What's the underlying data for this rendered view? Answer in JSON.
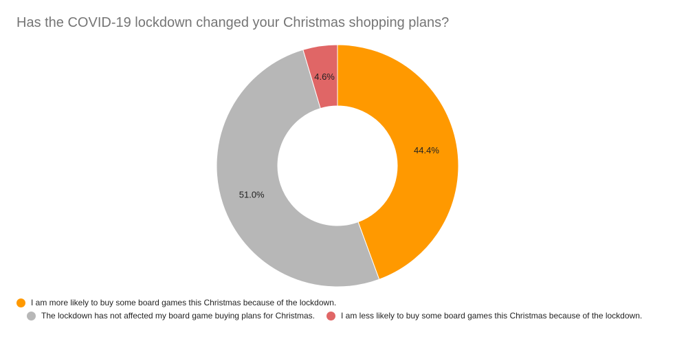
{
  "chart_data": {
    "type": "pie",
    "subtype": "donut",
    "title": "Has the COVID-19 lockdown changed your Christmas shopping plans?",
    "categories": [
      "I am more likely to buy some board games this Christmas because of the lockdown.",
      "The lockdown has not affected my board game buying plans for Christmas.",
      "I am less likely to buy some board games this Christmas because of the lockdown."
    ],
    "values": [
      44.4,
      51.0,
      4.6
    ],
    "labels": [
      "44.4%",
      "51.0%",
      "4.6%"
    ],
    "colors": [
      "#ff9900",
      "#b7b7b7",
      "#e06666"
    ],
    "legend_position": "bottom"
  },
  "legend": {
    "item1": "I am more likely to buy some board games this Christmas because of the lockdown.",
    "item2": "The lockdown has not affected my board game buying plans for Christmas.",
    "item3": "I am less likely to buy some board games this Christmas because of the lockdown."
  }
}
